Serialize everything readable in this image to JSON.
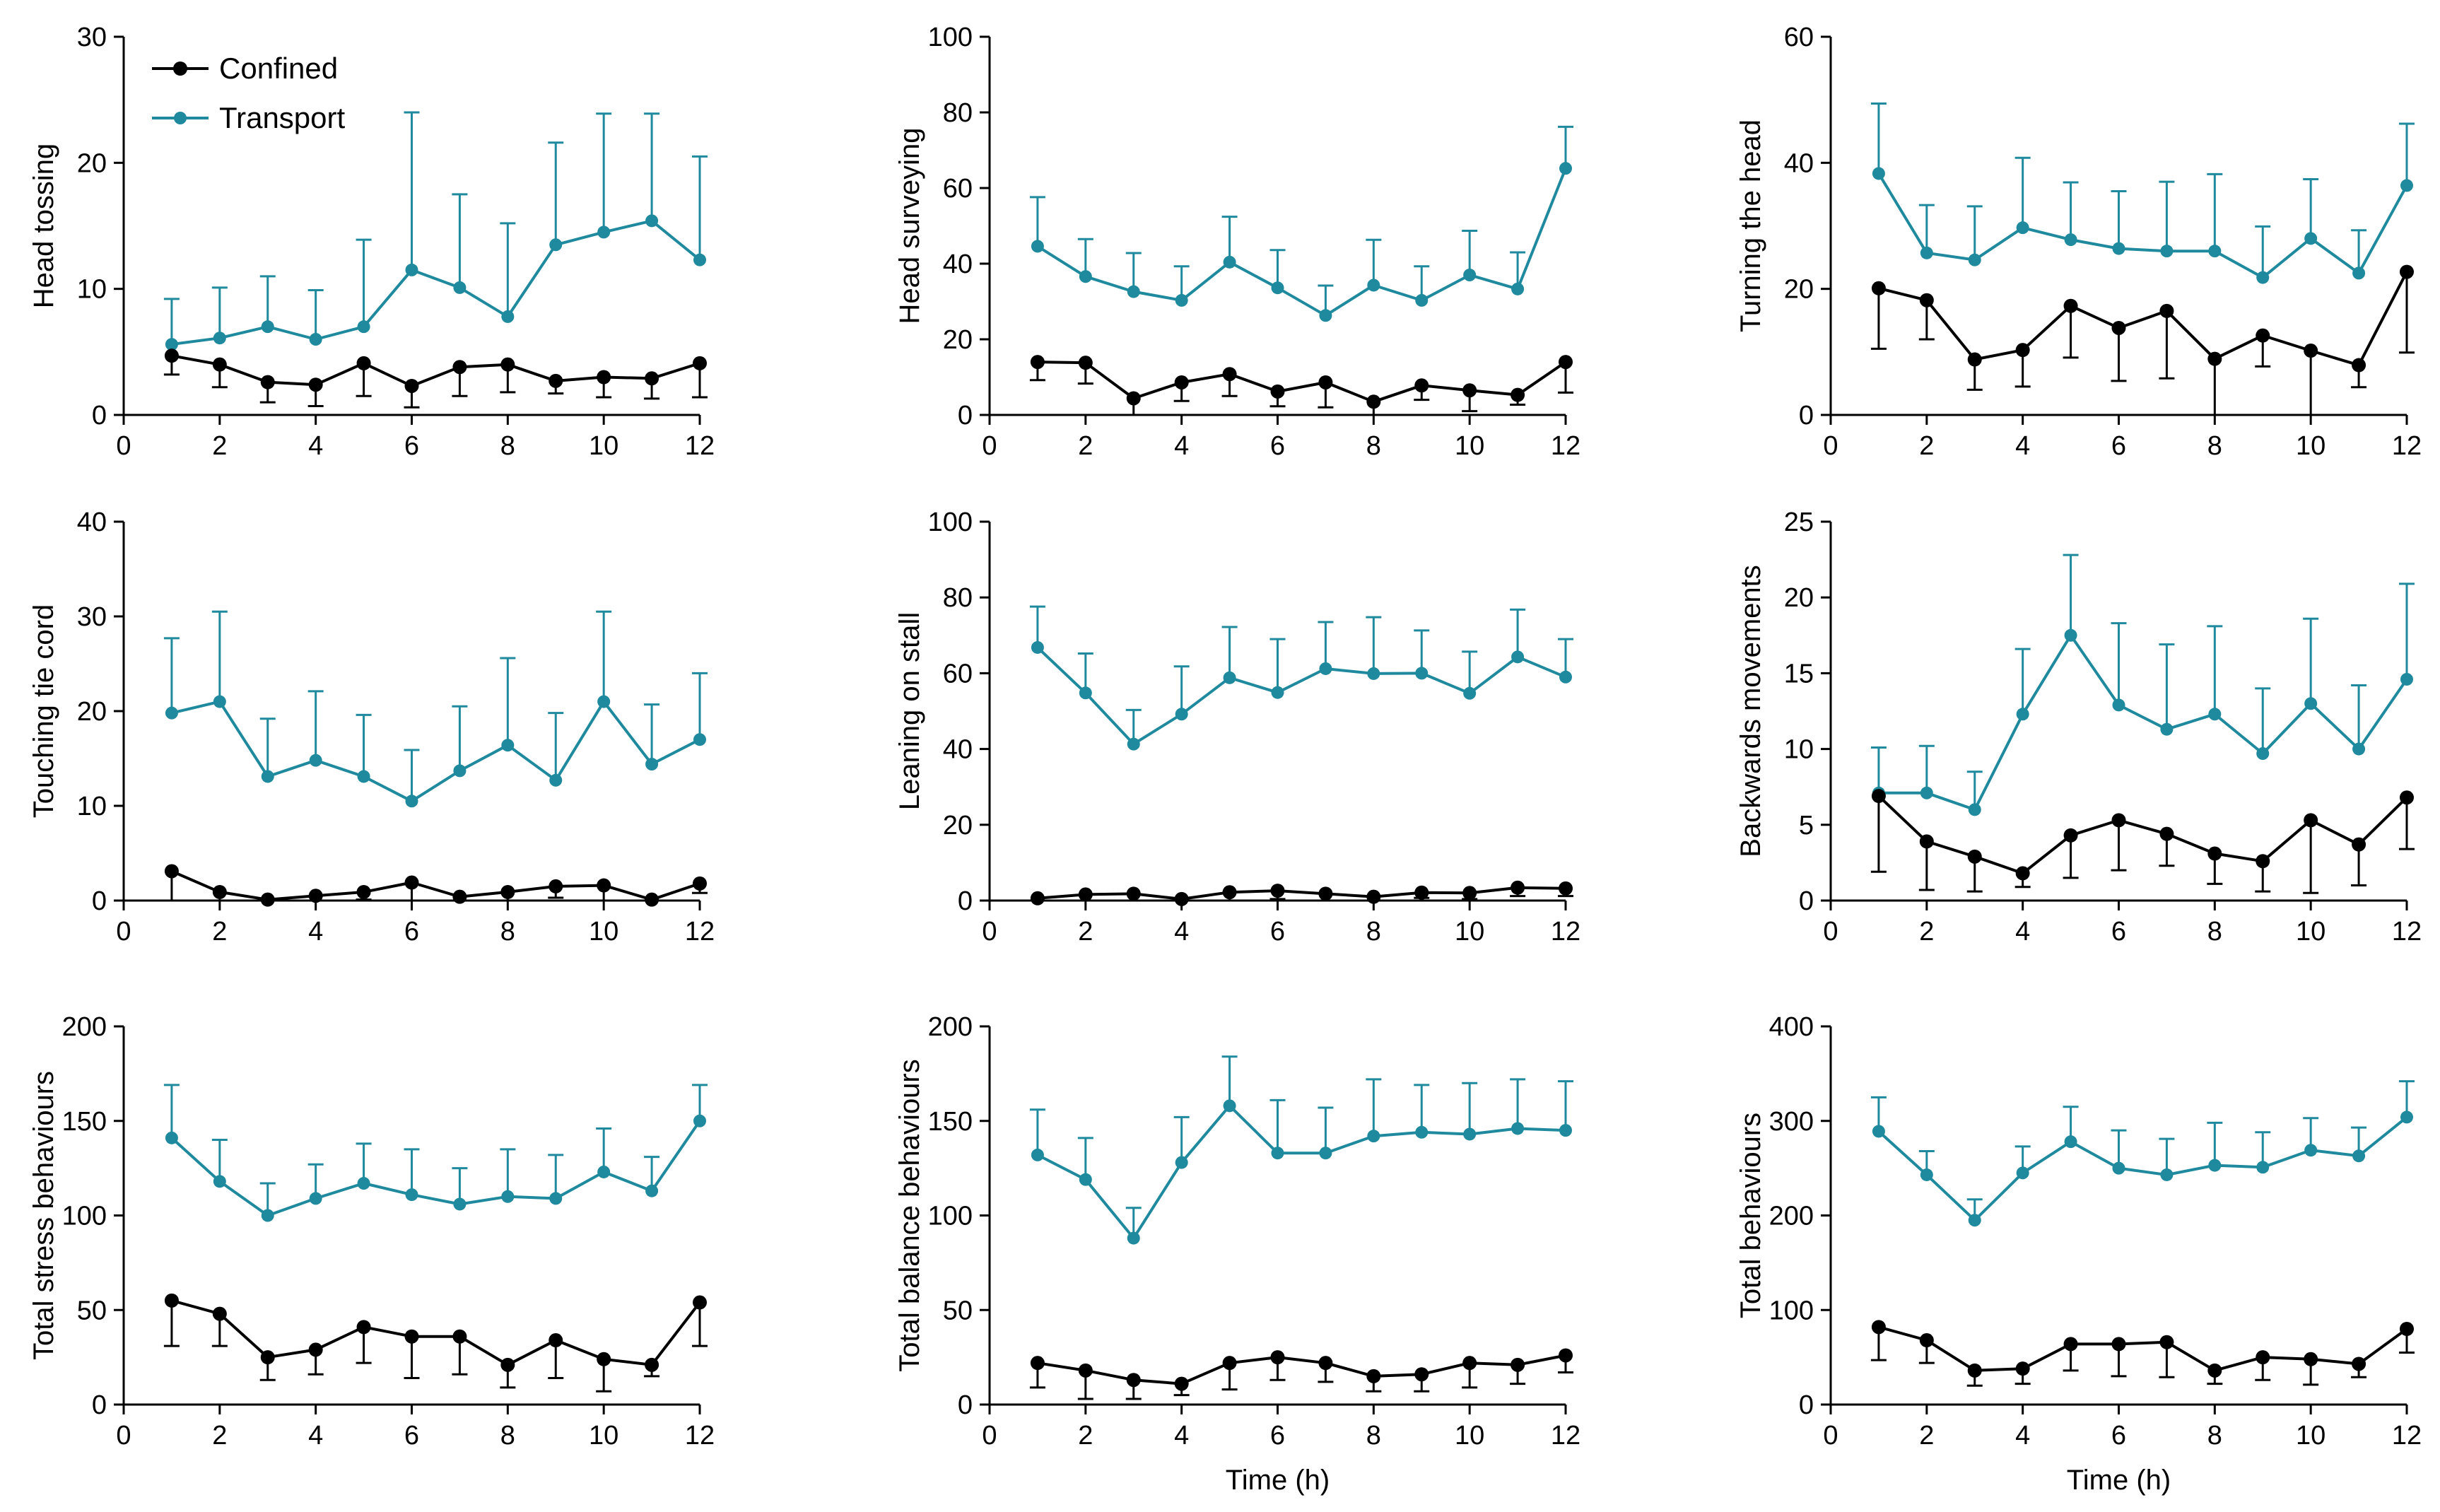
{
  "colors": {
    "confined": "#000000",
    "transport": "#1f8a9e"
  },
  "legend": {
    "confined": "Confined",
    "transport": "Transport"
  },
  "chart_data": [
    {
      "type": "line",
      "ylabel": "Head tossing",
      "xlabel": "",
      "xlim": [
        0,
        12
      ],
      "ylim": [
        0,
        30
      ],
      "xticks": [
        0,
        2,
        4,
        6,
        8,
        10,
        12
      ],
      "yticks": [
        0,
        10,
        20,
        30
      ],
      "x": [
        1,
        2,
        3,
        4,
        5,
        6,
        7,
        8,
        9,
        10,
        11,
        12
      ],
      "series": [
        {
          "name": "Confined",
          "values": [
            4.7,
            4.0,
            2.6,
            2.4,
            4.1,
            2.3,
            3.8,
            4.0,
            2.7,
            3.0,
            2.9,
            4.1
          ],
          "err": [
            1.5,
            1.8,
            1.6,
            1.7,
            2.6,
            1.7,
            2.3,
            2.2,
            1.0,
            1.6,
            1.6,
            2.7
          ]
        },
        {
          "name": "Transport",
          "values": [
            5.6,
            6.1,
            7.0,
            6.0,
            7.0,
            11.5,
            10.1,
            7.8,
            13.5,
            14.5,
            15.4,
            12.3
          ],
          "err": [
            3.6,
            4.0,
            4.0,
            3.9,
            6.9,
            12.5,
            7.4,
            7.4,
            8.1,
            9.4,
            8.5,
            8.2
          ]
        }
      ]
    },
    {
      "type": "line",
      "ylabel": "Head surveying",
      "xlabel": "",
      "xlim": [
        0,
        12
      ],
      "ylim": [
        0,
        100
      ],
      "xticks": [
        0,
        2,
        4,
        6,
        8,
        10,
        12
      ],
      "yticks": [
        0,
        20,
        40,
        60,
        80,
        100
      ],
      "x": [
        1,
        2,
        3,
        4,
        5,
        6,
        7,
        8,
        9,
        10,
        11,
        12
      ],
      "series": [
        {
          "name": "Confined",
          "values": [
            14.0,
            13.8,
            4.4,
            8.6,
            10.8,
            6.2,
            8.6,
            3.5,
            7.8,
            6.5,
            5.3,
            14.0
          ],
          "err": [
            4.8,
            5.5,
            4.4,
            4.9,
            5.8,
            3.9,
            6.6,
            3.5,
            3.8,
            5.5,
            2.6,
            8.1
          ]
        },
        {
          "name": "Transport",
          "values": [
            44.6,
            36.6,
            32.6,
            30.3,
            40.4,
            33.6,
            26.3,
            34.3,
            30.3,
            37.0,
            33.3,
            65.2
          ],
          "err": [
            13.0,
            9.9,
            10.2,
            9.0,
            12.0,
            10.0,
            7.9,
            12.0,
            9.0,
            11.7,
            9.7,
            11.0
          ]
        }
      ]
    },
    {
      "type": "line",
      "ylabel": "Turning the head",
      "xlabel": "",
      "xlim": [
        0,
        12
      ],
      "ylim": [
        0,
        60
      ],
      "xticks": [
        0,
        2,
        4,
        6,
        8,
        10,
        12
      ],
      "yticks": [
        0,
        20,
        40,
        60
      ],
      "x": [
        1,
        2,
        3,
        4,
        5,
        6,
        7,
        8,
        9,
        10,
        11,
        12
      ],
      "series": [
        {
          "name": "Confined",
          "values": [
            20.1,
            18.2,
            8.8,
            10.3,
            17.3,
            13.8,
            16.5,
            8.9,
            12.6,
            10.2,
            7.9,
            22.7
          ],
          "err": [
            9.6,
            6.2,
            4.8,
            5.8,
            8.2,
            8.4,
            10.7,
            8.9,
            4.9,
            10.2,
            3.5,
            12.8
          ]
        },
        {
          "name": "Transport",
          "values": [
            38.3,
            25.7,
            24.6,
            29.7,
            27.8,
            26.4,
            26.0,
            26.0,
            21.8,
            28.0,
            22.5,
            36.4
          ],
          "err": [
            11.1,
            7.6,
            8.5,
            11.1,
            9.1,
            9.1,
            11.0,
            12.2,
            8.1,
            9.4,
            6.8,
            9.8
          ]
        }
      ]
    },
    {
      "type": "line",
      "ylabel": "Touching tie cord",
      "xlabel": "",
      "xlim": [
        0,
        12
      ],
      "ylim": [
        0,
        40
      ],
      "xticks": [
        0,
        2,
        4,
        6,
        8,
        10,
        12
      ],
      "yticks": [
        0,
        10,
        20,
        30,
        40
      ],
      "x": [
        1,
        2,
        3,
        4,
        5,
        6,
        7,
        8,
        9,
        10,
        11,
        12
      ],
      "series": [
        {
          "name": "Confined",
          "values": [
            3.1,
            0.9,
            0.1,
            0.5,
            0.9,
            1.9,
            0.4,
            0.9,
            1.5,
            1.6,
            0.1,
            1.8
          ],
          "err": [
            3.3,
            1.0,
            0.2,
            0.5,
            0.8,
            3.9,
            0.4,
            1.1,
            1.2,
            1.8,
            0.2,
            1.0
          ]
        },
        {
          "name": "Transport",
          "values": [
            19.8,
            21.0,
            13.1,
            14.8,
            13.1,
            10.5,
            13.7,
            16.4,
            12.7,
            21.0,
            14.4,
            17.0
          ],
          "err": [
            7.9,
            9.5,
            6.1,
            7.3,
            6.5,
            5.4,
            6.8,
            9.2,
            7.1,
            9.5,
            6.3,
            7.0
          ]
        }
      ]
    },
    {
      "type": "line",
      "ylabel": "Leaning on stall",
      "xlabel": "",
      "xlim": [
        0,
        12
      ],
      "ylim": [
        0,
        100
      ],
      "xticks": [
        0,
        2,
        4,
        6,
        8,
        10,
        12
      ],
      "yticks": [
        0,
        20,
        40,
        60,
        80,
        100
      ],
      "x": [
        1,
        2,
        3,
        4,
        5,
        6,
        7,
        8,
        9,
        10,
        11,
        12
      ],
      "series": [
        {
          "name": "Confined",
          "values": [
            0.6,
            1.6,
            1.8,
            0.4,
            2.2,
            2.6,
            1.8,
            1.0,
            2.1,
            2.0,
            3.4,
            3.2
          ],
          "err": [
            0.8,
            2.0,
            2.2,
            0.6,
            2.4,
            2.2,
            1.8,
            1.2,
            1.4,
            1.6,
            2.2,
            2.0
          ]
        },
        {
          "name": "Transport",
          "values": [
            66.8,
            54.8,
            41.3,
            49.2,
            58.8,
            54.9,
            61.2,
            59.9,
            60.0,
            54.7,
            64.3,
            59.0
          ],
          "err": [
            10.8,
            10.4,
            9.0,
            12.6,
            13.4,
            14.1,
            12.3,
            14.9,
            11.3,
            11.0,
            12.5,
            10.0
          ]
        }
      ]
    },
    {
      "type": "line",
      "ylabel": "Backwards movements",
      "xlabel": "",
      "xlim": [
        0,
        12
      ],
      "ylim": [
        0,
        25
      ],
      "xticks": [
        0,
        2,
        4,
        6,
        8,
        10,
        12
      ],
      "yticks": [
        0,
        5,
        10,
        15,
        20,
        25
      ],
      "x": [
        1,
        2,
        3,
        4,
        5,
        6,
        7,
        8,
        9,
        10,
        11,
        12
      ],
      "series": [
        {
          "name": "Confined",
          "values": [
            6.9,
            3.9,
            2.9,
            1.8,
            4.3,
            5.3,
            4.4,
            3.1,
            2.6,
            5.3,
            3.7,
            6.8
          ],
          "err": [
            5.0,
            3.2,
            2.3,
            0.9,
            2.8,
            3.3,
            2.1,
            2.0,
            2.0,
            4.8,
            2.7,
            3.4
          ]
        },
        {
          "name": "Transport",
          "values": [
            7.1,
            7.1,
            6.0,
            12.3,
            17.5,
            12.9,
            11.3,
            12.3,
            9.7,
            13.0,
            10.0,
            14.6
          ],
          "err": [
            3.0,
            3.1,
            2.5,
            4.3,
            5.3,
            5.4,
            5.6,
            5.8,
            4.3,
            5.6,
            4.2,
            6.3
          ]
        }
      ]
    },
    {
      "type": "line",
      "ylabel": "Total stress behaviours",
      "xlabel": "",
      "xlim": [
        0,
        12
      ],
      "ylim": [
        0,
        200
      ],
      "xticks": [
        0,
        2,
        4,
        6,
        8,
        10,
        12
      ],
      "yticks": [
        0,
        50,
        100,
        150,
        200
      ],
      "x": [
        1,
        2,
        3,
        4,
        5,
        6,
        7,
        8,
        9,
        10,
        11,
        12
      ],
      "series": [
        {
          "name": "Confined",
          "values": [
            55,
            48,
            25,
            29,
            41,
            36,
            36,
            21,
            34,
            24,
            21,
            54
          ],
          "err": [
            24,
            17,
            12,
            13,
            19,
            22,
            20,
            12,
            20,
            17,
            6,
            23
          ]
        },
        {
          "name": "Transport",
          "values": [
            141,
            118,
            100,
            109,
            117,
            111,
            106,
            110,
            109,
            123,
            113,
            150
          ],
          "err": [
            28,
            22,
            17,
            18,
            21,
            24,
            19,
            25,
            23,
            23,
            18,
            19
          ]
        }
      ]
    },
    {
      "type": "line",
      "ylabel": "Total balance behaviours",
      "xlabel": "Time (h)",
      "xlim": [
        0,
        12
      ],
      "ylim": [
        0,
        200
      ],
      "xticks": [
        0,
        2,
        4,
        6,
        8,
        10,
        12
      ],
      "yticks": [
        0,
        50,
        100,
        150,
        200
      ],
      "x": [
        1,
        2,
        3,
        4,
        5,
        6,
        7,
        8,
        9,
        10,
        11,
        12
      ],
      "series": [
        {
          "name": "Confined",
          "values": [
            22,
            18,
            13,
            11,
            22,
            25,
            22,
            15,
            16,
            22,
            21,
            26
          ],
          "err": [
            13,
            15,
            10,
            6,
            14,
            12,
            10,
            8,
            9,
            13,
            10,
            9
          ]
        },
        {
          "name": "Transport",
          "values": [
            132,
            119,
            88,
            128,
            158,
            133,
            133,
            142,
            144,
            143,
            146,
            145
          ],
          "err": [
            24,
            22,
            16,
            24,
            26,
            28,
            24,
            30,
            25,
            27,
            26,
            26
          ]
        }
      ]
    },
    {
      "type": "line",
      "ylabel": "Total behaviours",
      "xlabel": "Time (h)",
      "xlim": [
        0,
        12
      ],
      "ylim": [
        0,
        400
      ],
      "xticks": [
        0,
        2,
        4,
        6,
        8,
        10,
        12
      ],
      "yticks": [
        0,
        100,
        200,
        300,
        400
      ],
      "x": [
        1,
        2,
        3,
        4,
        5,
        6,
        7,
        8,
        9,
        10,
        11,
        12
      ],
      "series": [
        {
          "name": "Confined",
          "values": [
            82,
            68,
            36,
            38,
            64,
            64,
            66,
            36,
            50,
            48,
            43,
            80
          ],
          "err": [
            35,
            24,
            16,
            16,
            28,
            34,
            37,
            14,
            24,
            27,
            14,
            25
          ]
        },
        {
          "name": "Transport",
          "values": [
            289,
            243,
            195,
            245,
            278,
            250,
            243,
            253,
            251,
            269,
            263,
            304
          ],
          "err": [
            36,
            25,
            22,
            28,
            37,
            40,
            38,
            45,
            37,
            34,
            30,
            38
          ]
        }
      ]
    }
  ]
}
